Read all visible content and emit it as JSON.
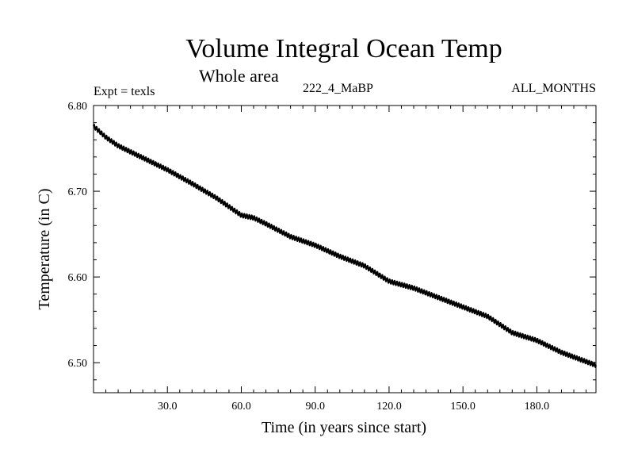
{
  "chart_data": {
    "type": "line",
    "title": "Volume Integral Ocean Temp",
    "subtitle": "Whole area",
    "experiment": "Expt = texls",
    "case_label": "222_4_MaBP",
    "months_label": "ALL_MONTHS",
    "xlabel": "Time (in years since start)",
    "ylabel": "Temperature (in C)",
    "xlim": [
      0,
      204
    ],
    "ylim": [
      6.465,
      6.8
    ],
    "x_ticks": [
      30,
      60,
      90,
      120,
      150,
      180
    ],
    "x_tick_labels": [
      "30.0",
      "60.0",
      "90.0",
      "120.0",
      "150.0",
      "180.0"
    ],
    "y_ticks": [
      6.5,
      6.6,
      6.7,
      6.8
    ],
    "y_tick_labels": [
      "6.50",
      "6.60",
      "6.70",
      "6.80"
    ],
    "grid": false,
    "line_color": "#000000",
    "seasonal_amplitude": 0.0025,
    "series": [
      {
        "name": "Volume Integral Ocean Temp",
        "x": [
          0,
          5,
          10,
          20,
          30,
          40,
          50,
          60,
          65,
          70,
          80,
          90,
          100,
          110,
          120,
          130,
          140,
          150,
          160,
          170,
          180,
          190,
          204
        ],
        "values": [
          6.776,
          6.763,
          6.753,
          6.739,
          6.725,
          6.709,
          6.692,
          6.672,
          6.669,
          6.662,
          6.647,
          6.637,
          6.624,
          6.613,
          6.595,
          6.587,
          6.576,
          6.565,
          6.554,
          6.535,
          6.526,
          6.512,
          6.497
        ]
      }
    ]
  }
}
